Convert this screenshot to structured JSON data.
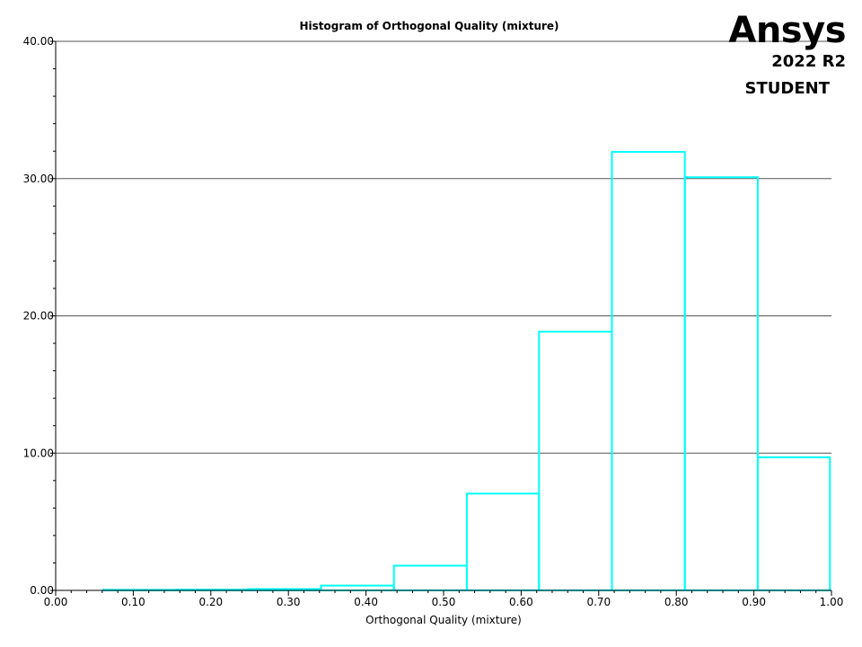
{
  "brand": {
    "logo": "Ansys",
    "version": "2022 R2",
    "edition": "STUDENT"
  },
  "chart_data": {
    "type": "bar",
    "title": "Histogram of Orthogonal Quality (mixture)",
    "xlabel": "Orthogonal Quality (mixture)",
    "ylabel": "",
    "xlim": [
      0,
      1
    ],
    "ylim": [
      0,
      40
    ],
    "x_ticks": [
      "0.00",
      "0.10",
      "0.20",
      "0.30",
      "0.40",
      "0.50",
      "0.60",
      "0.70",
      "0.80",
      "0.90",
      "1.00"
    ],
    "y_ticks": [
      "0.00",
      "10.00",
      "20.00",
      "30.00",
      "40.00"
    ],
    "grid": "horizontal",
    "bar_color": "#00ffff",
    "bins": [
      {
        "x0": 0.061,
        "x1": 0.155,
        "value": 0.0
      },
      {
        "x0": 0.155,
        "x1": 0.248,
        "value": 0.05
      },
      {
        "x0": 0.248,
        "x1": 0.342,
        "value": 0.1
      },
      {
        "x0": 0.342,
        "x1": 0.436,
        "value": 0.35
      },
      {
        "x0": 0.436,
        "x1": 0.53,
        "value": 1.8
      },
      {
        "x0": 0.53,
        "x1": 0.623,
        "value": 7.05
      },
      {
        "x0": 0.623,
        "x1": 0.717,
        "value": 18.85
      },
      {
        "x0": 0.717,
        "x1": 0.811,
        "value": 31.95
      },
      {
        "x0": 0.811,
        "x1": 0.905,
        "value": 30.1
      },
      {
        "x0": 0.905,
        "x1": 0.998,
        "value": 9.7
      }
    ]
  }
}
